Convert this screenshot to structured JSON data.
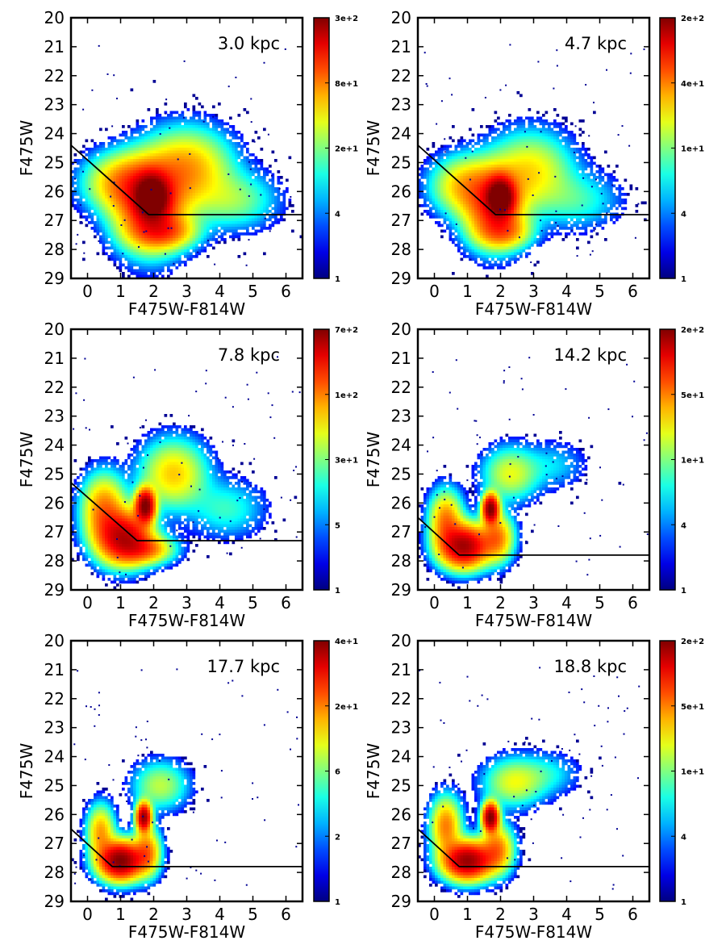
{
  "figure": {
    "xlabel": "F475W-F814W",
    "ylabel": "F475W"
  },
  "chart_data": [
    {
      "type": "heatmap",
      "label": "3.0 kpc",
      "xlabel": "F475W-F814W",
      "ylabel": "F475W",
      "xlim": [
        -0.5,
        6.5
      ],
      "ylim": [
        29,
        20
      ],
      "xticks": [
        0,
        1,
        2,
        3,
        4,
        5,
        6
      ],
      "yticks": [
        20,
        21,
        22,
        23,
        24,
        25,
        26,
        27,
        28,
        29
      ],
      "colorbar": {
        "ticks": [
          "1",
          "4",
          "2e+1",
          "8e+1",
          "3e+2"
        ]
      },
      "cut_line": [
        [
          -0.5,
          24.4
        ],
        [
          1.85,
          26.8
        ],
        [
          6.5,
          26.8
        ]
      ],
      "density": [
        {
          "x": 1.95,
          "y": 26.2,
          "sx": 0.3,
          "sy": 0.45,
          "w": 1.0
        },
        {
          "x": 1.9,
          "y": 26.5,
          "sx": 0.65,
          "sy": 0.9,
          "w": 0.55
        },
        {
          "x": 1.1,
          "y": 25.7,
          "sx": 0.7,
          "sy": 0.6,
          "w": 0.3
        },
        {
          "x": 3.0,
          "y": 25.2,
          "sx": 0.8,
          "sy": 0.8,
          "w": 0.3
        },
        {
          "x": 4.4,
          "y": 26.3,
          "sx": 0.8,
          "sy": 0.6,
          "w": 0.12
        },
        {
          "x": 2.3,
          "y": 27.4,
          "sx": 0.6,
          "sy": 0.35,
          "w": 0.3
        }
      ]
    },
    {
      "type": "heatmap",
      "label": "4.7 kpc",
      "xlabel": "F475W-F814W",
      "ylabel": "F475W",
      "xlim": [
        -0.5,
        6.5
      ],
      "ylim": [
        29,
        20
      ],
      "xticks": [
        0,
        1,
        2,
        3,
        4,
        5,
        6
      ],
      "yticks": [
        20,
        21,
        22,
        23,
        24,
        25,
        26,
        27,
        28,
        29
      ],
      "colorbar": {
        "ticks": [
          "1",
          "4",
          "1e+1",
          "4e+1",
          "2e+2"
        ]
      },
      "cut_line": [
        [
          -0.5,
          24.4
        ],
        [
          1.85,
          26.8
        ],
        [
          6.5,
          26.8
        ]
      ],
      "density": [
        {
          "x": 2.0,
          "y": 26.2,
          "sx": 0.25,
          "sy": 0.4,
          "w": 1.0
        },
        {
          "x": 1.8,
          "y": 26.5,
          "sx": 0.55,
          "sy": 0.8,
          "w": 0.5
        },
        {
          "x": 0.9,
          "y": 25.8,
          "sx": 0.6,
          "sy": 0.6,
          "w": 0.25
        },
        {
          "x": 2.9,
          "y": 25.3,
          "sx": 0.75,
          "sy": 0.8,
          "w": 0.22
        },
        {
          "x": 4.3,
          "y": 26.3,
          "sx": 0.8,
          "sy": 0.6,
          "w": 0.08
        },
        {
          "x": 2.1,
          "y": 27.4,
          "sx": 0.5,
          "sy": 0.35,
          "w": 0.25
        }
      ]
    },
    {
      "type": "heatmap",
      "label": "7.8 kpc",
      "xlabel": "F475W-F814W",
      "ylabel": "F475W",
      "xlim": [
        -0.5,
        6.5
      ],
      "ylim": [
        29,
        20
      ],
      "xticks": [
        0,
        1,
        2,
        3,
        4,
        5,
        6
      ],
      "yticks": [
        20,
        21,
        22,
        23,
        24,
        25,
        26,
        27,
        28,
        29
      ],
      "colorbar": {
        "ticks": [
          "1",
          "5",
          "3e+1",
          "1e+2",
          "7e+2"
        ]
      },
      "cut_line": [
        [
          -0.5,
          25.3
        ],
        [
          1.5,
          27.3
        ],
        [
          6.5,
          27.3
        ]
      ],
      "density": [
        {
          "x": 1.75,
          "y": 26.1,
          "sx": 0.18,
          "sy": 0.35,
          "w": 1.0
        },
        {
          "x": 1.1,
          "y": 27.2,
          "sx": 0.5,
          "sy": 0.55,
          "w": 0.75
        },
        {
          "x": 0.5,
          "y": 26.2,
          "sx": 0.4,
          "sy": 0.7,
          "w": 0.35
        },
        {
          "x": 2.6,
          "y": 25.0,
          "sx": 0.6,
          "sy": 0.7,
          "w": 0.25
        },
        {
          "x": 4.2,
          "y": 26.2,
          "sx": 0.7,
          "sy": 0.6,
          "w": 0.08
        },
        {
          "x": 1.8,
          "y": 27.6,
          "sx": 0.5,
          "sy": 0.3,
          "w": 0.3
        }
      ]
    },
    {
      "type": "heatmap",
      "label": "14.2 kpc",
      "xlabel": "F475W-F814W",
      "ylabel": "F475W",
      "xlim": [
        -0.5,
        6.5
      ],
      "ylim": [
        29,
        20
      ],
      "xticks": [
        0,
        1,
        2,
        3,
        4,
        5,
        6
      ],
      "yticks": [
        20,
        21,
        22,
        23,
        24,
        25,
        26,
        27,
        28,
        29
      ],
      "colorbar": {
        "ticks": [
          "1",
          "4",
          "1e+1",
          "5e+1",
          "2e+2"
        ]
      },
      "cut_line": [
        [
          -0.5,
          26.5
        ],
        [
          0.75,
          27.8
        ],
        [
          6.5,
          27.8
        ]
      ],
      "density": [
        {
          "x": 1.7,
          "y": 26.2,
          "sx": 0.15,
          "sy": 0.3,
          "w": 1.0
        },
        {
          "x": 0.9,
          "y": 27.5,
          "sx": 0.45,
          "sy": 0.45,
          "w": 0.85
        },
        {
          "x": 0.35,
          "y": 26.6,
          "sx": 0.3,
          "sy": 0.6,
          "w": 0.35
        },
        {
          "x": 2.3,
          "y": 25.0,
          "sx": 0.5,
          "sy": 0.55,
          "w": 0.18
        },
        {
          "x": 1.9,
          "y": 27.2,
          "sx": 0.3,
          "sy": 0.5,
          "w": 0.35
        },
        {
          "x": 3.6,
          "y": 24.7,
          "sx": 0.6,
          "sy": 0.5,
          "w": 0.05
        }
      ]
    },
    {
      "type": "heatmap",
      "label": "17.7 kpc",
      "xlabel": "F475W-F814W",
      "ylabel": "F475W",
      "xlim": [
        -0.5,
        6.5
      ],
      "ylim": [
        29,
        20
      ],
      "xticks": [
        0,
        1,
        2,
        3,
        4,
        5,
        6
      ],
      "yticks": [
        20,
        21,
        22,
        23,
        24,
        25,
        26,
        27,
        28,
        29
      ],
      "colorbar": {
        "ticks": [
          "1",
          "2",
          "6",
          "2e+1",
          "4e+1"
        ]
      },
      "cut_line": [
        [
          -0.5,
          26.5
        ],
        [
          0.75,
          27.8
        ],
        [
          6.5,
          27.8
        ]
      ],
      "density": [
        {
          "x": 1.7,
          "y": 26.1,
          "sx": 0.14,
          "sy": 0.3,
          "w": 0.9
        },
        {
          "x": 1.0,
          "y": 27.6,
          "sx": 0.4,
          "sy": 0.4,
          "w": 1.0
        },
        {
          "x": 0.4,
          "y": 26.6,
          "sx": 0.25,
          "sy": 0.55,
          "w": 0.3
        },
        {
          "x": 2.2,
          "y": 25.0,
          "sx": 0.5,
          "sy": 0.5,
          "w": 0.15
        },
        {
          "x": 1.8,
          "y": 27.3,
          "sx": 0.25,
          "sy": 0.5,
          "w": 0.35
        }
      ]
    },
    {
      "type": "heatmap",
      "label": "18.8 kpc",
      "xlabel": "F475W-F814W",
      "ylabel": "F475W",
      "xlim": [
        -0.5,
        6.5
      ],
      "ylim": [
        29,
        20
      ],
      "xticks": [
        0,
        1,
        2,
        3,
        4,
        5,
        6
      ],
      "yticks": [
        20,
        21,
        22,
        23,
        24,
        25,
        26,
        27,
        28,
        29
      ],
      "colorbar": {
        "ticks": [
          "1",
          "4",
          "1e+1",
          "5e+1",
          "2e+2"
        ]
      },
      "cut_line": [
        [
          -0.5,
          26.5
        ],
        [
          0.75,
          27.8
        ],
        [
          6.5,
          27.8
        ]
      ],
      "density": [
        {
          "x": 1.7,
          "y": 26.1,
          "sx": 0.15,
          "sy": 0.3,
          "w": 1.0
        },
        {
          "x": 1.0,
          "y": 27.6,
          "sx": 0.45,
          "sy": 0.4,
          "w": 0.9
        },
        {
          "x": 0.35,
          "y": 26.4,
          "sx": 0.28,
          "sy": 0.6,
          "w": 0.35
        },
        {
          "x": 2.4,
          "y": 24.9,
          "sx": 0.55,
          "sy": 0.5,
          "w": 0.18
        },
        {
          "x": 1.9,
          "y": 27.2,
          "sx": 0.3,
          "sy": 0.5,
          "w": 0.35
        },
        {
          "x": 3.4,
          "y": 24.6,
          "sx": 0.6,
          "sy": 0.45,
          "w": 0.06
        }
      ]
    }
  ]
}
